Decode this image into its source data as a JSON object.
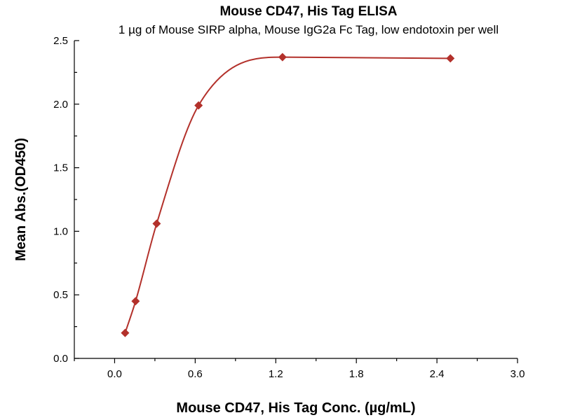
{
  "chart_data": {
    "type": "scatter",
    "title": "Mouse CD47, His Tag ELISA",
    "subtitle": "1 µg of Mouse SIRP alpha, Mouse IgG2a Fc Tag, low endotoxin per well",
    "xlabel": "Mouse CD47, His Tag Conc. (µg/mL)",
    "ylabel": "Mean Abs.(OD450)",
    "xlim": [
      -0.3,
      3.0
    ],
    "ylim": [
      0.0,
      2.5
    ],
    "x_ticks": [
      "0.0",
      "0.6",
      "1.2",
      "1.8",
      "2.4",
      "3.0"
    ],
    "y_ticks": [
      "0.0",
      "0.5",
      "1.0",
      "1.5",
      "2.0",
      "2.5"
    ],
    "grid": false,
    "series": [
      {
        "points": [
          {
            "x": 0.078,
            "y": 0.2
          },
          {
            "x": 0.156,
            "y": 0.45
          },
          {
            "x": 0.313,
            "y": 1.06
          },
          {
            "x": 0.625,
            "y": 1.99
          },
          {
            "x": 1.25,
            "y": 2.37
          },
          {
            "x": 2.5,
            "y": 2.36
          }
        ],
        "fit_curve": true,
        "color": "#b3312b"
      }
    ]
  }
}
